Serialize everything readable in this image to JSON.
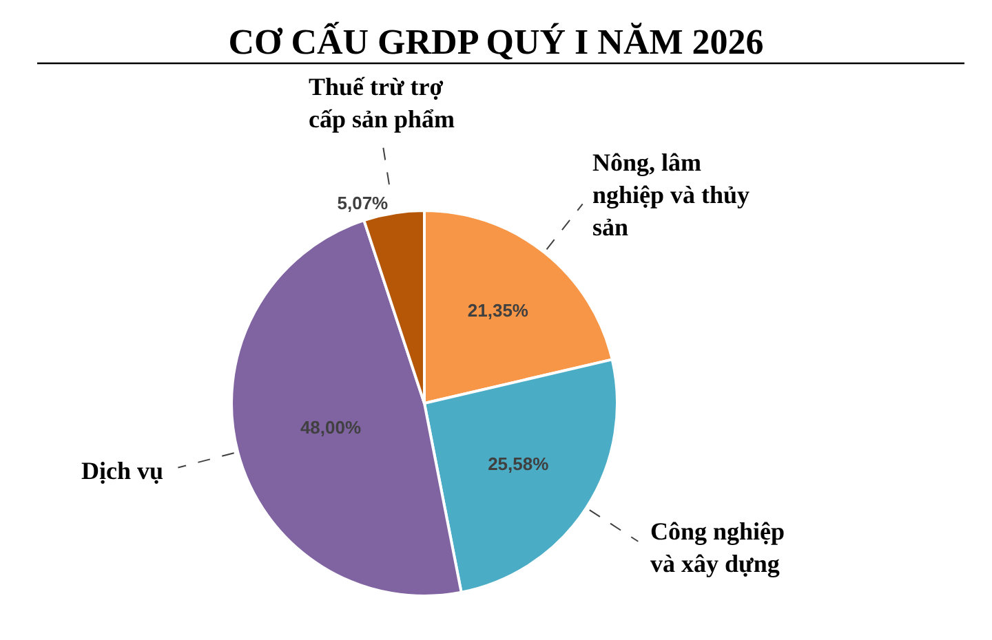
{
  "chart_data": {
    "type": "pie",
    "title": "CƠ CẤU GRDP QUÝ I NĂM 2026",
    "categories": [
      "Nông, lâm nghiệp và thủy sản",
      "Công nghiệp và xây dựng",
      "Dịch vụ",
      "Thuế trừ trợ cấp sản phẩm"
    ],
    "values": [
      21.35,
      25.58,
      48.0,
      5.07
    ],
    "colors": [
      "#f79646",
      "#4bacc6",
      "#8064a2",
      "#b65708"
    ],
    "value_labels": [
      "21,35%",
      "25,58%",
      "48,00%",
      "5,07%"
    ],
    "legend": false
  }
}
